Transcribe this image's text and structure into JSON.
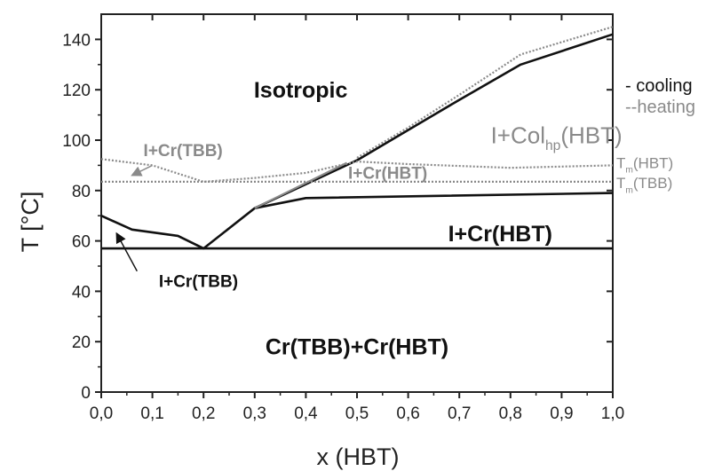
{
  "chart_data": {
    "type": "line",
    "title": "",
    "xlabel": "x (HBT)",
    "ylabel": "T [°C]",
    "xlim": [
      0,
      1
    ],
    "ylim": [
      0,
      150
    ],
    "xticks": [
      0,
      0.1,
      0.2,
      0.3,
      0.4,
      0.5,
      0.6,
      0.7,
      0.8,
      0.9,
      1.0
    ],
    "xtick_labels": [
      "0,0",
      "0,1",
      "0,2",
      "0,3",
      "0,4",
      "0,5",
      "0,6",
      "0,7",
      "0,8",
      "0,9",
      "1,0"
    ],
    "yticks": [
      0,
      20,
      40,
      60,
      80,
      100,
      120,
      140
    ],
    "ytick_labels": [
      "0",
      "20",
      "40",
      "60",
      "80",
      "100",
      "120",
      "140"
    ],
    "grid": false,
    "legend": {
      "position": "right",
      "entries": [
        {
          "label": "- cooling",
          "color": "#111111"
        },
        {
          "label": "--heating",
          "color": "#8a8a8a"
        }
      ]
    },
    "series": [
      {
        "name": "cooling",
        "style": "solid",
        "color": "#111111",
        "points": [
          [
            0,
            70
          ],
          [
            0.06,
            64.5
          ],
          [
            0.15,
            62
          ],
          [
            0.2,
            57
          ],
          [
            0.3,
            73
          ],
          [
            0.4,
            77
          ],
          [
            1.0,
            79
          ]
        ]
      },
      {
        "name": "cooling",
        "style": "solid",
        "color": "#111111",
        "points": [
          [
            0.3,
            73
          ],
          [
            0.5,
            92
          ],
          [
            0.6,
            104
          ],
          [
            0.7,
            116
          ],
          [
            0.82,
            130
          ],
          [
            1.0,
            142
          ]
        ]
      },
      {
        "name": "cooling",
        "style": "solid",
        "color": "#111111",
        "points": [
          [
            0,
            57
          ],
          [
            1.0,
            57
          ]
        ]
      },
      {
        "name": "heating",
        "style": "dotted",
        "color": "#8a8a8a",
        "points": [
          [
            0,
            92.5
          ],
          [
            0.1,
            90
          ],
          [
            0.2,
            83.5
          ],
          [
            0.3,
            85
          ],
          [
            0.4,
            87
          ],
          [
            0.5,
            91.5
          ],
          [
            0.6,
            90.5
          ],
          [
            0.8,
            89
          ],
          [
            1.0,
            90
          ]
        ]
      },
      {
        "name": "heating",
        "style": "dotted",
        "color": "#8a8a8a",
        "points": [
          [
            0,
            83.5
          ],
          [
            1.0,
            83.5
          ]
        ]
      },
      {
        "name": "heating",
        "style": "dotted",
        "color": "#8a8a8a",
        "points": [
          [
            0.5,
            93
          ],
          [
            0.6,
            105
          ],
          [
            0.7,
            118
          ],
          [
            0.82,
            134
          ],
          [
            1.0,
            145
          ]
        ]
      },
      {
        "name": "heating",
        "style": "solid",
        "color": "#8a8a8a",
        "points": [
          [
            0.3,
            73
          ],
          [
            0.48,
            91
          ]
        ]
      }
    ],
    "annotations": [
      {
        "text": "Isotropic",
        "x": 0.39,
        "y": 120,
        "color": "#111111",
        "weight": "bold"
      },
      {
        "text": "I+Cr(TBB)",
        "x": 0.16,
        "y": 96,
        "color": "#8a8a8a",
        "weight": "bold"
      },
      {
        "text": "I+Cr(HBT)",
        "x": 0.56,
        "y": 87,
        "color": "#8a8a8a",
        "weight": "bold"
      },
      {
        "text": "I+Cr(HBT)",
        "x": 0.78,
        "y": 63,
        "color": "#111111",
        "weight": "bold"
      },
      {
        "text": "I+Cr(TBB)",
        "x": 0.19,
        "y": 44,
        "color": "#111111",
        "weight": "bold"
      },
      {
        "text": "Cr(TBB)+Cr(HBT)",
        "x": 0.5,
        "y": 18,
        "color": "#111111",
        "weight": "bold"
      },
      {
        "text": "I+Col",
        "sub": "hp",
        "suffix": "(HBT)",
        "x": 0.89,
        "y": 102,
        "color": "#8a8a8a"
      },
      {
        "text": "T",
        "sub": "m",
        "suffix": "(HBT)",
        "x": 1.0,
        "y": 91,
        "color": "#8a8a8a"
      },
      {
        "text": "T",
        "sub": "m",
        "suffix": "(TBB)",
        "x": 1.0,
        "y": 83,
        "color": "#8a8a8a"
      }
    ],
    "arrows": [
      {
        "from": [
          0.1,
          90
        ],
        "to": [
          0.06,
          86
        ],
        "color": "#8a8a8a"
      },
      {
        "from": [
          0.07,
          48
        ],
        "to": [
          0.03,
          63
        ],
        "color": "#111111"
      }
    ]
  }
}
